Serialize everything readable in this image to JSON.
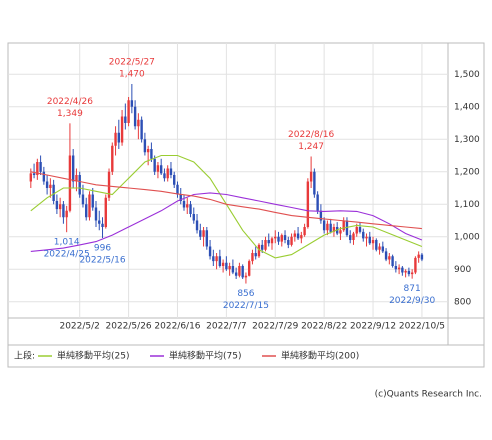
{
  "chart_data": {
    "type": "candlestick",
    "up_color": "#e8393a",
    "down_color": "#2c4fb5",
    "xlim": [
      -7,
      128
    ],
    "xticks": [
      {
        "value": 15,
        "label": "2022/5/2"
      },
      {
        "value": 30,
        "label": "2022/5/26"
      },
      {
        "value": 45,
        "label": "2022/6/16"
      },
      {
        "value": 60,
        "label": "2022/7/7"
      },
      {
        "value": 75,
        "label": "2022/7/29"
      },
      {
        "value": 90,
        "label": "2022/8/22"
      },
      {
        "value": 105,
        "label": "2022/9/12"
      },
      {
        "value": 120,
        "label": "2022/10/5"
      }
    ],
    "ylim": [
      750,
      1590
    ],
    "yticks": [
      800,
      900,
      {
        "value": 1000,
        "label": "1,000"
      },
      {
        "value": 1100,
        "label": "1,100"
      },
      {
        "value": 1200,
        "label": "1,200"
      },
      {
        "value": 1300,
        "label": "1,300"
      },
      {
        "value": 1400,
        "label": "1,400"
      },
      {
        "value": 1500,
        "label": "1,500"
      }
    ],
    "grid": true,
    "ohlc": [
      [
        1170,
        1210,
        1150,
        1195
      ],
      [
        1195,
        1225,
        1180,
        1190
      ],
      [
        1190,
        1240,
        1175,
        1230
      ],
      [
        1230,
        1250,
        1190,
        1200
      ],
      [
        1200,
        1215,
        1160,
        1170
      ],
      [
        1170,
        1190,
        1130,
        1150
      ],
      [
        1150,
        1180,
        1120,
        1160
      ],
      [
        1160,
        1175,
        1100,
        1110
      ],
      [
        1110,
        1130,
        1070,
        1085
      ],
      [
        1085,
        1120,
        1060,
        1100
      ],
      [
        1100,
        1110,
        1040,
        1060
      ],
      [
        1060,
        1095,
        1014,
        1080
      ],
      [
        1080,
        1349,
        1075,
        1250
      ],
      [
        1250,
        1270,
        1150,
        1170
      ],
      [
        1170,
        1210,
        1140,
        1190
      ],
      [
        1190,
        1200,
        1120,
        1130
      ],
      [
        1130,
        1160,
        1090,
        1100
      ],
      [
        1100,
        1120,
        1050,
        1060
      ],
      [
        1060,
        1140,
        1050,
        1130
      ],
      [
        1130,
        1150,
        1080,
        1090
      ],
      [
        1090,
        1110,
        1030,
        1050
      ],
      [
        1050,
        1080,
        1020,
        1040
      ],
      [
        1040,
        1060,
        996,
        1030
      ],
      [
        1030,
        1130,
        1025,
        1120
      ],
      [
        1120,
        1210,
        1110,
        1200
      ],
      [
        1200,
        1290,
        1190,
        1280
      ],
      [
        1280,
        1340,
        1250,
        1320
      ],
      [
        1320,
        1360,
        1270,
        1290
      ],
      [
        1290,
        1390,
        1280,
        1370
      ],
      [
        1370,
        1410,
        1330,
        1350
      ],
      [
        1350,
        1430,
        1340,
        1420
      ],
      [
        1420,
        1470,
        1380,
        1400
      ],
      [
        1400,
        1420,
        1330,
        1340
      ],
      [
        1340,
        1380,
        1300,
        1360
      ],
      [
        1360,
        1370,
        1290,
        1300
      ],
      [
        1300,
        1320,
        1250,
        1260
      ],
      [
        1260,
        1280,
        1220,
        1270
      ],
      [
        1270,
        1290,
        1230,
        1240
      ],
      [
        1240,
        1250,
        1190,
        1200
      ],
      [
        1200,
        1230,
        1180,
        1220
      ],
      [
        1220,
        1240,
        1190,
        1195
      ],
      [
        1195,
        1210,
        1170,
        1180
      ],
      [
        1180,
        1220,
        1170,
        1210
      ],
      [
        1210,
        1230,
        1180,
        1190
      ],
      [
        1190,
        1200,
        1150,
        1160
      ],
      [
        1160,
        1170,
        1120,
        1130
      ],
      [
        1130,
        1150,
        1100,
        1110
      ],
      [
        1110,
        1130,
        1080,
        1090
      ],
      [
        1090,
        1120,
        1070,
        1100
      ],
      [
        1100,
        1110,
        1060,
        1070
      ],
      [
        1070,
        1090,
        1040,
        1050
      ],
      [
        1050,
        1070,
        1010,
        1020
      ],
      [
        1020,
        1040,
        990,
        1000
      ],
      [
        1000,
        1030,
        970,
        1020
      ],
      [
        1020,
        1030,
        960,
        970
      ],
      [
        970,
        990,
        930,
        940
      ],
      [
        940,
        960,
        910,
        925
      ],
      [
        925,
        950,
        900,
        940
      ],
      [
        940,
        960,
        905,
        910
      ],
      [
        910,
        930,
        890,
        920
      ],
      [
        920,
        940,
        895,
        900
      ],
      [
        900,
        920,
        880,
        910
      ],
      [
        910,
        930,
        885,
        890
      ],
      [
        890,
        905,
        870,
        880
      ],
      [
        880,
        920,
        875,
        910
      ],
      [
        910,
        915,
        870,
        875
      ],
      [
        875,
        890,
        856,
        880
      ],
      [
        880,
        930,
        878,
        925
      ],
      [
        925,
        960,
        915,
        950
      ],
      [
        950,
        970,
        930,
        940
      ],
      [
        940,
        980,
        935,
        975
      ],
      [
        975,
        990,
        950,
        960
      ],
      [
        960,
        1000,
        955,
        990
      ],
      [
        990,
        1010,
        970,
        980
      ],
      [
        980,
        1000,
        960,
        995
      ],
      [
        995,
        1020,
        980,
        1000
      ],
      [
        1000,
        1015,
        975,
        985
      ],
      [
        985,
        1010,
        970,
        1005
      ],
      [
        1005,
        1020,
        980,
        990
      ],
      [
        990,
        1000,
        965,
        975
      ],
      [
        975,
        1010,
        970,
        1000
      ],
      [
        1000,
        1020,
        985,
        1010
      ],
      [
        1010,
        1030,
        990,
        995
      ],
      [
        995,
        1015,
        980,
        1005
      ],
      [
        1005,
        1040,
        1000,
        1030
      ],
      [
        1030,
        1180,
        1025,
        1170
      ],
      [
        1170,
        1247,
        1150,
        1200
      ],
      [
        1200,
        1210,
        1120,
        1130
      ],
      [
        1130,
        1140,
        1070,
        1080
      ],
      [
        1080,
        1100,
        1040,
        1050
      ],
      [
        1050,
        1060,
        1010,
        1020
      ],
      [
        1020,
        1050,
        1005,
        1040
      ],
      [
        1040,
        1055,
        1010,
        1015
      ],
      [
        1015,
        1040,
        1000,
        1030
      ],
      [
        1030,
        1045,
        1005,
        1010
      ],
      [
        1010,
        1030,
        990,
        1020
      ],
      [
        1020,
        1060,
        1015,
        1050
      ],
      [
        1050,
        1060,
        1000,
        1005
      ],
      [
        1005,
        1020,
        980,
        990
      ],
      [
        990,
        1015,
        975,
        1010
      ],
      [
        1010,
        1040,
        1000,
        1030
      ],
      [
        1030,
        1045,
        1010,
        1015
      ],
      [
        1015,
        1025,
        985,
        995
      ],
      [
        995,
        1010,
        970,
        1000
      ],
      [
        1000,
        1015,
        975,
        980
      ],
      [
        980,
        1000,
        960,
        990
      ],
      [
        990,
        995,
        955,
        960
      ],
      [
        960,
        980,
        945,
        970
      ],
      [
        970,
        985,
        950,
        955
      ],
      [
        955,
        965,
        925,
        930
      ],
      [
        930,
        950,
        915,
        940
      ],
      [
        940,
        945,
        905,
        910
      ],
      [
        910,
        925,
        890,
        900
      ],
      [
        900,
        915,
        885,
        905
      ],
      [
        905,
        910,
        880,
        890
      ],
      [
        890,
        900,
        875,
        895
      ],
      [
        895,
        905,
        878,
        885
      ],
      [
        885,
        900,
        871,
        890
      ],
      [
        890,
        940,
        885,
        935
      ],
      [
        935,
        955,
        920,
        945
      ],
      [
        945,
        950,
        925,
        930
      ]
    ],
    "ma_x": [
      0,
      5,
      10,
      15,
      20,
      25,
      30,
      35,
      40,
      45,
      50,
      55,
      60,
      65,
      70,
      75,
      80,
      85,
      90,
      95,
      100,
      105,
      110,
      115,
      120
    ],
    "series": [
      {
        "name": "単純移動平均(25)",
        "color": "#9acd32",
        "values": [
          1080,
          1120,
          1150,
          1150,
          1140,
          1130,
          1180,
          1230,
          1250,
          1250,
          1230,
          1180,
          1100,
          1020,
          960,
          935,
          945,
          975,
          1005,
          1025,
          1035,
          1030,
          1010,
          990,
          970
        ]
      },
      {
        "name": "単純移動平均(75)",
        "color": "#9b30d9",
        "values": [
          955,
          960,
          965,
          975,
          985,
          1005,
          1030,
          1055,
          1080,
          1110,
          1130,
          1135,
          1130,
          1120,
          1110,
          1100,
          1090,
          1080,
          1078,
          1080,
          1078,
          1065,
          1040,
          1010,
          990
        ]
      },
      {
        "name": "単純移動平均(200)",
        "color": "#e05050",
        "values": [
          1200,
          1190,
          1180,
          1170,
          1160,
          1155,
          1150,
          1145,
          1140,
          1132,
          1125,
          1115,
          1100,
          1092,
          1085,
          1075,
          1065,
          1060,
          1055,
          1050,
          1045,
          1040,
          1035,
          1030,
          1025
        ]
      }
    ],
    "annotations": [
      {
        "date": "2022/4/26",
        "value": 1349,
        "value_label": "1,349",
        "kind": "high",
        "color": "#e8393a"
      },
      {
        "date": "2022/5/27",
        "value": 1470,
        "value_label": "1,470",
        "kind": "high",
        "color": "#e8393a"
      },
      {
        "date": "2022/8/16",
        "value": 1247,
        "value_label": "1,247",
        "kind": "high",
        "color": "#e8393a"
      },
      {
        "date": "2022/4/25",
        "value": 1014,
        "value_label": "1,014",
        "kind": "low",
        "color": "#3a6fd0"
      },
      {
        "date": "2022/5/16",
        "value": 996,
        "value_label": "996",
        "kind": "low",
        "color": "#3a6fd0"
      },
      {
        "date": "2022/7/15",
        "value": 856,
        "value_label": "856",
        "kind": "low",
        "color": "#3a6fd0"
      },
      {
        "date": "2022/9/30",
        "value": 871,
        "value_label": "871",
        "kind": "low",
        "color": "#3a6fd0"
      }
    ],
    "legend_prefix": "上段:",
    "credit": "(c)Quants Research Inc."
  }
}
